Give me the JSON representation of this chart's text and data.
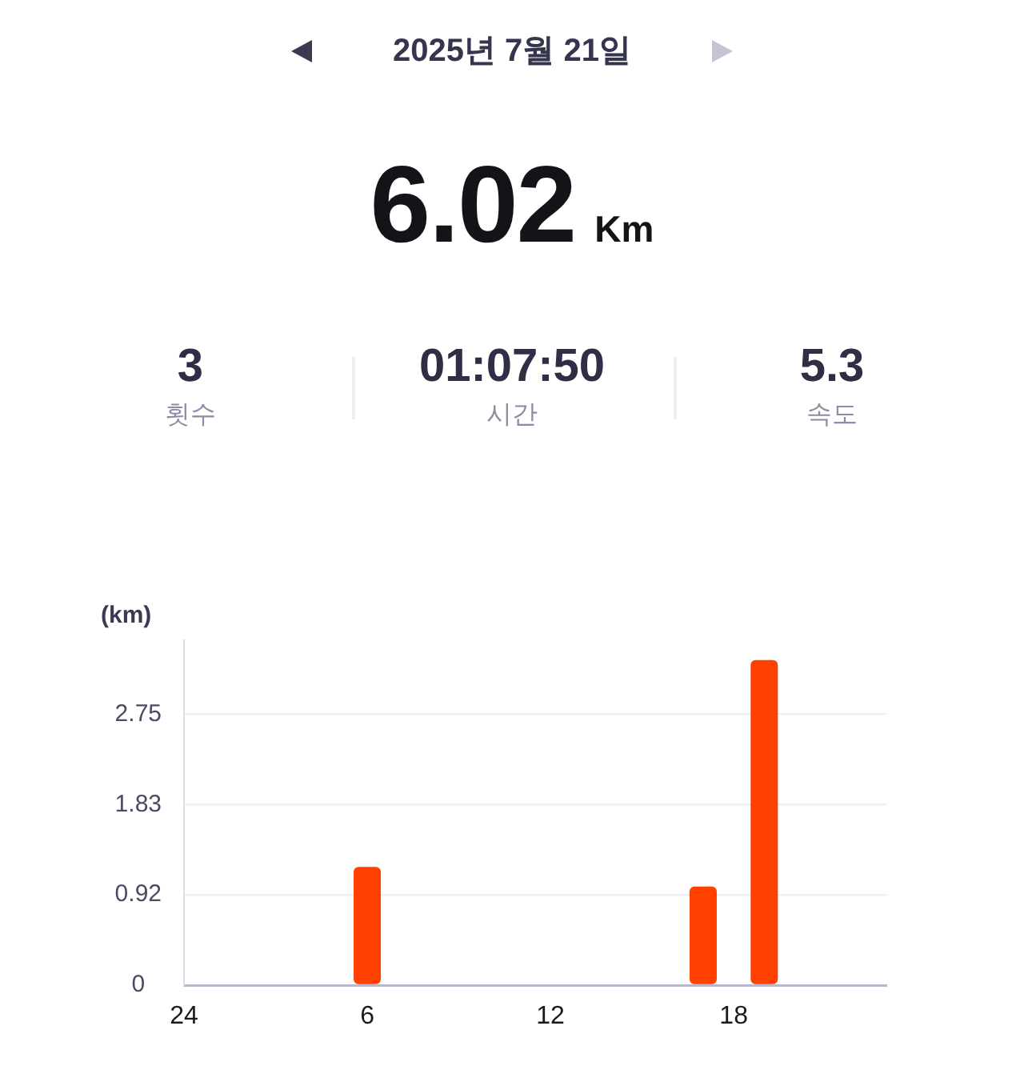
{
  "chart_data": {
    "type": "bar",
    "title": "2025년 7월 21일",
    "ylabel": "(km)",
    "annotations": [
      "6.02",
      "Km",
      "3",
      "횟수",
      "01:07:50",
      "시간",
      "5.3",
      "속도"
    ],
    "categories": [
      "24",
      null,
      null,
      null,
      null,
      null,
      "6",
      null,
      null,
      null,
      null,
      null,
      "12",
      null,
      null,
      null,
      null,
      null,
      "18",
      null,
      null,
      null,
      null,
      null
    ],
    "values": [
      null,
      null,
      null,
      null,
      null,
      null,
      1.2,
      null,
      null,
      null,
      null,
      null,
      null,
      null,
      null,
      null,
      null,
      1.0,
      null,
      3.3,
      null,
      null,
      null,
      null
    ],
    "color": "#ff4000",
    "ylim": [
      0,
      3.5
    ],
    "yticks": [
      0,
      0.92,
      1.83,
      2.75
    ],
    "grid": "y"
  }
}
